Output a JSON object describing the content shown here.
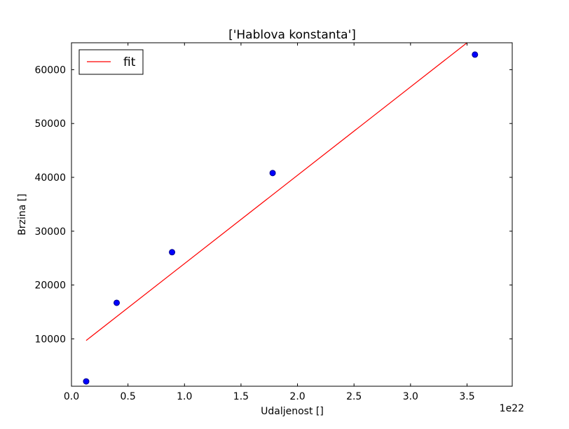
{
  "chart_data": {
    "type": "scatter",
    "title": "['Hablova konstanta']",
    "xlabel": "Udaljenost []",
    "ylabel": "Brzina []",
    "x_offset_label": "1e22",
    "xlim": [
      0.0,
      3.9
    ],
    "ylim": [
      1200,
      65000
    ],
    "x_ticks": [
      0.0,
      0.5,
      1.0,
      1.5,
      2.0,
      2.5,
      3.0,
      3.5
    ],
    "x_tick_labels": [
      "0.0",
      "0.5",
      "1.0",
      "1.5",
      "2.0",
      "2.5",
      "3.0",
      "3.5"
    ],
    "y_ticks": [
      10000,
      20000,
      30000,
      40000,
      50000,
      60000
    ],
    "y_tick_labels": [
      "10000",
      "20000",
      "30000",
      "40000",
      "50000",
      "60000"
    ],
    "points": {
      "x": [
        0.13,
        0.4,
        0.89,
        1.78,
        3.57
      ],
      "y": [
        2100,
        16700,
        26100,
        40800,
        62800
      ],
      "color": "#0000ff"
    },
    "fit": {
      "name": "fit",
      "color": "#ff0000",
      "x": [
        0.13,
        3.5
      ],
      "y": [
        9700,
        65000
      ]
    },
    "legend": {
      "position": "top-left",
      "entries": [
        "fit"
      ]
    },
    "grid": false
  }
}
